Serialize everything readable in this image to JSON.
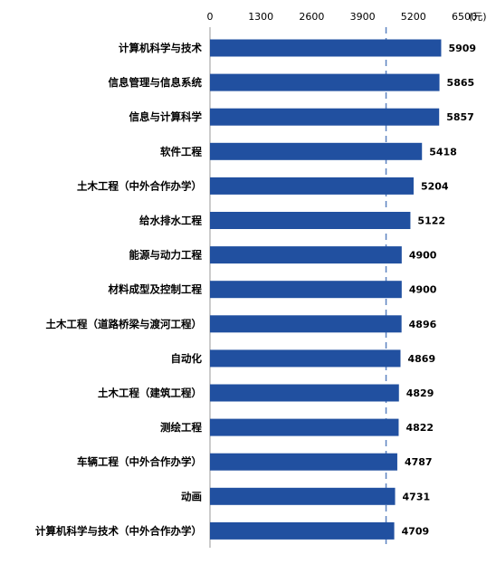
{
  "chart_data": {
    "type": "bar",
    "orientation": "horizontal",
    "unit": "(元)",
    "xlim": [
      0,
      6500
    ],
    "x_ticks": [
      0,
      1300,
      2600,
      3900,
      5200,
      6500
    ],
    "x_tick_labels": [
      "0",
      "1300",
      "2600",
      "3900",
      "5200",
      "6500"
    ],
    "reference_line": 4500,
    "categories": [
      "计算机科学与技术",
      "信息管理与信息系统",
      "信息与计算科学",
      "软件工程",
      "土木工程（中外合作办学）",
      "给水排水工程",
      "能源与动力工程",
      "材料成型及控制工程",
      "土木工程（道路桥梁与渡河工程）",
      "自动化",
      "土木工程（建筑工程）",
      "测绘工程",
      "车辆工程（中外合作办学）",
      "动画",
      "计算机科学与技术（中外合作办学）"
    ],
    "values": [
      5909,
      5865,
      5857,
      5418,
      5204,
      5122,
      4900,
      4900,
      4896,
      4869,
      4829,
      4822,
      4787,
      4731,
      4709
    ],
    "value_labels": [
      "5909",
      "5865",
      "5857",
      "5418",
      "5204",
      "5122",
      "4900",
      "4900",
      "4896",
      "4869",
      "4829",
      "4822",
      "4787",
      "4731",
      "4709"
    ],
    "bar_color": "#2150A0",
    "reference_line_color": "#5B82C0",
    "grid": false,
    "legend": "none"
  }
}
